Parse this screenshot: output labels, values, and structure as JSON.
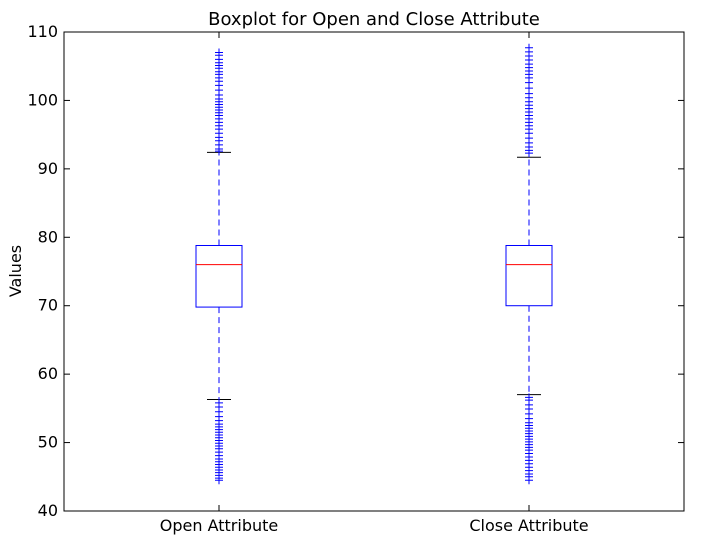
{
  "chart_data": {
    "type": "box",
    "title": "Boxplot for Open and Close Attribute",
    "xlabel": "",
    "ylabel": "Values",
    "ylim": [
      40,
      110
    ],
    "yticks": [
      40,
      50,
      60,
      70,
      80,
      90,
      100,
      110
    ],
    "grid": false,
    "categories": [
      "Open Attribute",
      "Close Attribute"
    ],
    "boxes": [
      {
        "label": "Open Attribute",
        "q1": 69.8,
        "median": 76.0,
        "q3": 78.8,
        "whisker_low": 56.3,
        "whisker_high": 92.4,
        "fliers_high": [
          92.6,
          92.9,
          93.5,
          94.1,
          94.6,
          95.2,
          95.8,
          96.3,
          96.8,
          97.3,
          97.8,
          98.2,
          98.6,
          99.0,
          99.4,
          99.8,
          100.2,
          100.8,
          101.5,
          102.2,
          102.8,
          103.3,
          103.8,
          104.2,
          104.7,
          105.1,
          105.5,
          106.0,
          106.6,
          107.0
        ],
        "fliers_low": [
          55.8,
          55.2,
          54.5,
          53.8,
          53.2,
          52.7,
          52.3,
          51.9,
          51.5,
          51.1,
          50.7,
          50.3,
          49.9,
          49.5,
          49.1,
          48.6,
          48.1,
          47.6,
          47.2,
          46.8,
          46.4,
          46.0,
          45.6,
          45.2,
          44.8,
          44.5
        ]
      },
      {
        "label": "Close Attribute",
        "q1": 70.0,
        "median": 76.0,
        "q3": 78.8,
        "whisker_low": 57.0,
        "whisker_high": 91.7,
        "fliers_high": [
          92.3,
          92.7,
          93.2,
          93.8,
          94.5,
          95.2,
          95.8,
          96.3,
          96.8,
          97.3,
          97.8,
          98.3,
          98.8,
          99.3,
          99.8,
          100.4,
          101.0,
          101.8,
          102.6,
          103.3,
          103.8,
          104.3,
          104.8,
          105.3,
          105.9,
          106.5,
          107.1,
          107.7
        ],
        "fliers_low": [
          56.6,
          56.2,
          55.5,
          54.9,
          54.2,
          53.5,
          52.9,
          52.5,
          52.1,
          51.7,
          51.3,
          50.9,
          50.5,
          50.1,
          49.7,
          49.3,
          48.9,
          48.4,
          47.9,
          47.4,
          46.9,
          46.4,
          45.9,
          45.4,
          45.0,
          44.5
        ]
      }
    ],
    "colors": {
      "box": "#0000ff",
      "median": "#ff0000",
      "whisker": "#0000ff",
      "cap": "#000000",
      "flier": "#0000ff",
      "axis": "#000000"
    }
  }
}
